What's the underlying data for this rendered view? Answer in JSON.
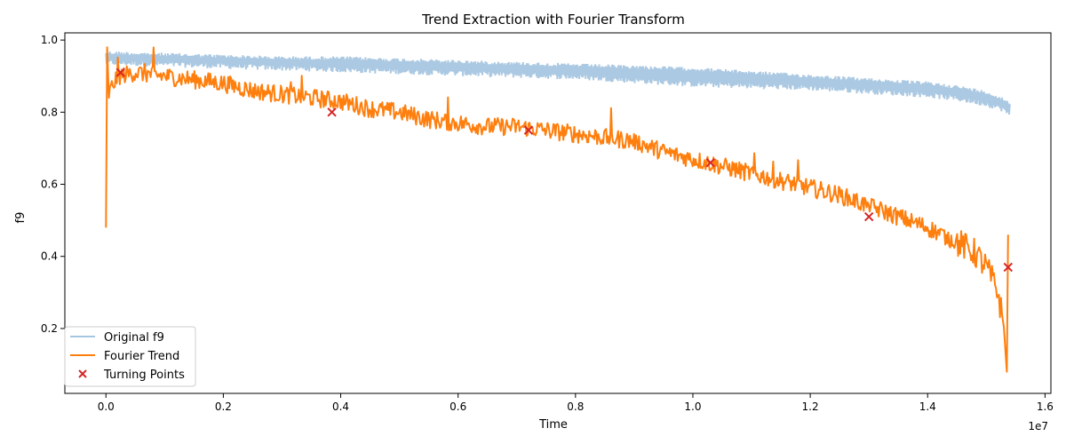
{
  "chart_data": {
    "type": "line",
    "title": "Trend Extraction with Fourier Transform",
    "xlabel": "Time",
    "ylabel": "f9",
    "x_offset_label": "1e7",
    "xlim": [
      -0.07,
      1.61
    ],
    "ylim": [
      0.02,
      1.02
    ],
    "x_ticks": [
      0.0,
      0.2,
      0.4,
      0.6,
      0.8,
      1.0,
      1.2,
      1.4,
      1.6
    ],
    "x_tick_labels": [
      "0.0",
      "0.2",
      "0.4",
      "0.6",
      "0.8",
      "1.0",
      "1.2",
      "1.4",
      "1.6"
    ],
    "y_ticks": [
      0.2,
      0.4,
      0.6,
      0.8,
      1.0
    ],
    "y_tick_labels": [
      "0.2",
      "0.4",
      "0.6",
      "0.8",
      "1.0"
    ],
    "legend_position": "lower-left",
    "grid": false,
    "series": [
      {
        "name": "Original f9",
        "kind": "line",
        "color": "#a6c6e0",
        "x": [
          0.0,
          0.1,
          0.2,
          0.3,
          0.4,
          0.5,
          0.6,
          0.7,
          0.8,
          0.9,
          1.0,
          1.1,
          1.2,
          1.3,
          1.4,
          1.45,
          1.5,
          1.53,
          1.54
        ],
        "y_high": [
          0.97,
          0.965,
          0.96,
          0.955,
          0.955,
          0.95,
          0.945,
          0.94,
          0.935,
          0.93,
          0.925,
          0.915,
          0.905,
          0.895,
          0.885,
          0.875,
          0.86,
          0.84,
          0.83
        ],
        "y_low": [
          0.93,
          0.925,
          0.92,
          0.915,
          0.91,
          0.905,
          0.9,
          0.895,
          0.89,
          0.88,
          0.87,
          0.865,
          0.86,
          0.85,
          0.84,
          0.83,
          0.815,
          0.8,
          0.78
        ]
      },
      {
        "name": "Fourier Trend",
        "kind": "line",
        "color": "#ff7f0e",
        "x": [
          0.0,
          0.002,
          0.005,
          0.01,
          0.02,
          0.05,
          0.1,
          0.15,
          0.2,
          0.25,
          0.3,
          0.35,
          0.4,
          0.45,
          0.5,
          0.55,
          0.6,
          0.65,
          0.7,
          0.75,
          0.8,
          0.85,
          0.9,
          0.95,
          1.0,
          1.05,
          1.1,
          1.15,
          1.2,
          1.25,
          1.3,
          1.35,
          1.4,
          1.45,
          1.48,
          1.5,
          1.52,
          1.53,
          1.535,
          1.537
        ],
        "y": [
          0.48,
          0.98,
          0.85,
          0.87,
          0.9,
          0.91,
          0.9,
          0.89,
          0.88,
          0.86,
          0.85,
          0.84,
          0.83,
          0.81,
          0.8,
          0.78,
          0.77,
          0.76,
          0.76,
          0.75,
          0.74,
          0.73,
          0.72,
          0.69,
          0.67,
          0.65,
          0.63,
          0.61,
          0.59,
          0.57,
          0.54,
          0.51,
          0.48,
          0.44,
          0.41,
          0.37,
          0.3,
          0.2,
          0.08,
          0.46
        ]
      },
      {
        "name": "Turning Points",
        "kind": "scatter",
        "color": "#d62728",
        "x": [
          0.025,
          0.385,
          0.72,
          1.03,
          1.3,
          1.537
        ],
        "y": [
          0.91,
          0.8,
          0.75,
          0.66,
          0.51,
          0.37
        ]
      }
    ]
  }
}
